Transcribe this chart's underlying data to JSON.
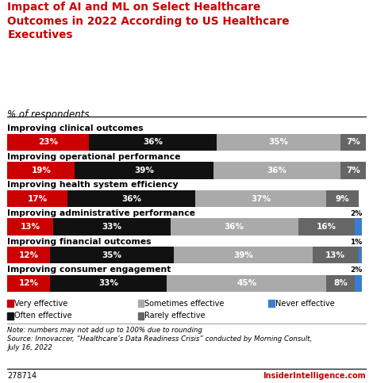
{
  "title_line1": "Impact of AI and ML on Select Healthcare",
  "title_line2": "Outcomes in 2022 According to US Healthcare",
  "title_line3": "Executives",
  "subtitle": "% of respondents",
  "categories": [
    "Improving clinical outcomes",
    "Improving operational performance",
    "Improving health system efficiency",
    "Improving administrative performance",
    "Improving financial outcomes",
    "Improving consumer engagement"
  ],
  "segments": {
    "Very effective": [
      23,
      19,
      17,
      13,
      12,
      12
    ],
    "Often effective": [
      36,
      39,
      36,
      33,
      35,
      33
    ],
    "Sometimes effective": [
      35,
      36,
      37,
      36,
      39,
      45
    ],
    "Rarely effective": [
      7,
      7,
      9,
      16,
      13,
      8
    ],
    "Never effective": [
      0,
      0,
      0,
      2,
      1,
      2
    ]
  },
  "colors": {
    "Very effective": "#cc0000",
    "Often effective": "#111111",
    "Sometimes effective": "#aaaaaa",
    "Rarely effective": "#666666",
    "Never effective": "#3a7fcf"
  },
  "note_line1": "Note: numbers may not add up to 100% due to rounding",
  "note_line2": "Source: Innovaccer, “Healthcare’s Data Readiness Crisis” conducted by Morning Consult,",
  "note_line3": "July 16, 2022",
  "watermark": "278714",
  "brand": "InsiderIntelligence.com",
  "background_color": "#ffffff",
  "title_color": "#cc0000",
  "bar_height": 0.6
}
